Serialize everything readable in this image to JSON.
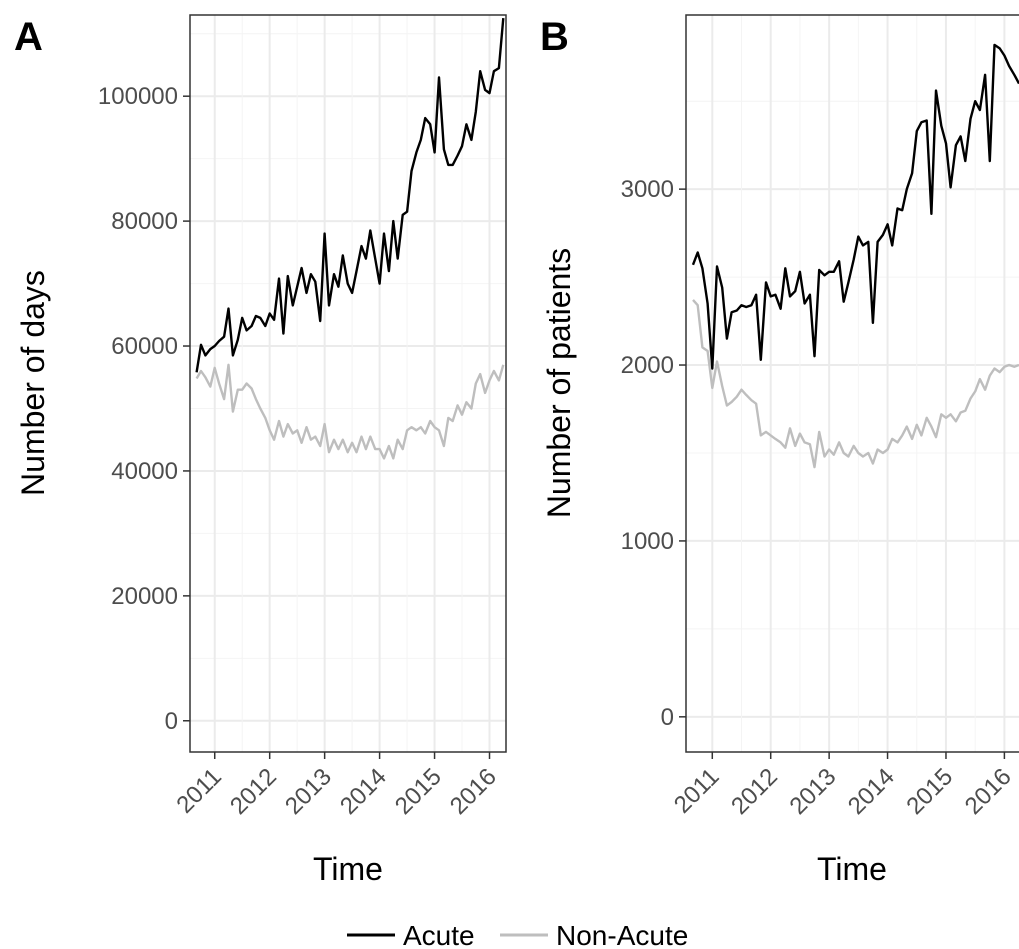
{
  "legend": {
    "placement": "bottom",
    "entries": [
      {
        "name": "Acute",
        "color": "#000000"
      },
      {
        "name": "Non-Acute",
        "color": "#bebebe"
      }
    ]
  },
  "chart_data": [
    {
      "panel": "A",
      "type": "line",
      "xlabel": "Time",
      "ylabel": "Number of days",
      "xlim": [
        2010.55,
        2016.3
      ],
      "ylim": [
        -5000,
        113000
      ],
      "x_ticks": [
        "2011",
        "2012",
        "2013",
        "2014",
        "2015",
        "2016"
      ],
      "y_ticks": [
        "0",
        "20000",
        "40000",
        "60000",
        "80000",
        "100000"
      ],
      "grid": true,
      "series": [
        {
          "name": "Acute",
          "color": "#000000",
          "x": [
            2010.67,
            2010.75,
            2010.83,
            2010.92,
            2011.0,
            2011.08,
            2011.17,
            2011.25,
            2011.33,
            2011.42,
            2011.5,
            2011.58,
            2011.67,
            2011.75,
            2011.83,
            2011.92,
            2012.0,
            2012.08,
            2012.17,
            2012.25,
            2012.33,
            2012.42,
            2012.5,
            2012.58,
            2012.67,
            2012.75,
            2012.83,
            2012.92,
            2013.0,
            2013.08,
            2013.17,
            2013.25,
            2013.33,
            2013.42,
            2013.5,
            2013.58,
            2013.67,
            2013.75,
            2013.83,
            2013.92,
            2014.0,
            2014.08,
            2014.17,
            2014.25,
            2014.33,
            2014.42,
            2014.5,
            2014.58,
            2014.67,
            2014.75,
            2014.83,
            2014.92,
            2015.0,
            2015.08,
            2015.17,
            2015.25,
            2015.33,
            2015.42,
            2015.5,
            2015.58,
            2015.67,
            2015.75,
            2015.83,
            2015.92,
            2016.0,
            2016.08,
            2016.17,
            2016.25
          ],
          "values": [
            55800,
            60200,
            58500,
            59500,
            60000,
            60800,
            61500,
            66000,
            58500,
            61000,
            64500,
            62500,
            63200,
            64800,
            64500,
            63200,
            65200,
            64200,
            70800,
            62000,
            71200,
            66500,
            69500,
            72500,
            68500,
            71500,
            70300,
            64000,
            78000,
            66500,
            71500,
            69500,
            74500,
            70000,
            68500,
            72000,
            76000,
            74000,
            78500,
            74000,
            70000,
            78000,
            72000,
            80000,
            74000,
            81000,
            81500,
            88000,
            91000,
            93000,
            96500,
            95500,
            91000,
            103000,
            91500,
            89000,
            89000,
            90500,
            92000,
            95500,
            93000,
            97500,
            104000,
            101000,
            100500,
            104000,
            104500,
            112500
          ]
        },
        {
          "name": "Non-Acute",
          "color": "#bebebe",
          "x": [
            2010.67,
            2010.75,
            2010.83,
            2010.92,
            2011.0,
            2011.08,
            2011.17,
            2011.25,
            2011.33,
            2011.42,
            2011.5,
            2011.58,
            2011.67,
            2011.75,
            2011.83,
            2011.92,
            2012.0,
            2012.08,
            2012.17,
            2012.25,
            2012.33,
            2012.42,
            2012.5,
            2012.58,
            2012.67,
            2012.75,
            2012.83,
            2012.92,
            2013.0,
            2013.08,
            2013.17,
            2013.25,
            2013.33,
            2013.42,
            2013.5,
            2013.58,
            2013.67,
            2013.75,
            2013.83,
            2013.92,
            2014.0,
            2014.08,
            2014.17,
            2014.25,
            2014.33,
            2014.42,
            2014.5,
            2014.58,
            2014.67,
            2014.75,
            2014.83,
            2014.92,
            2015.0,
            2015.08,
            2015.17,
            2015.25,
            2015.33,
            2015.42,
            2015.5,
            2015.58,
            2015.67,
            2015.75,
            2015.83,
            2015.92,
            2016.0,
            2016.08,
            2016.17,
            2016.25
          ],
          "values": [
            54800,
            56000,
            55000,
            53500,
            56500,
            54000,
            51500,
            57000,
            49500,
            53000,
            53000,
            54000,
            53200,
            51500,
            50000,
            48500,
            46500,
            45000,
            48000,
            45500,
            47500,
            46000,
            46500,
            44500,
            47000,
            45000,
            45500,
            44000,
            47500,
            43000,
            45000,
            43500,
            45000,
            43000,
            44500,
            43000,
            45500,
            43500,
            45500,
            43500,
            43500,
            42000,
            44000,
            42000,
            45000,
            43500,
            46500,
            47000,
            46500,
            47000,
            46000,
            48000,
            47000,
            46500,
            44000,
            48500,
            48000,
            50500,
            49000,
            51000,
            50000,
            54000,
            55500,
            52500,
            54500,
            56000,
            54500,
            57000
          ]
        }
      ]
    },
    {
      "panel": "B",
      "type": "line",
      "xlabel": "Time",
      "ylabel": "Number of patients",
      "xlim": [
        2010.55,
        2016.25
      ],
      "ylim": [
        -200,
        3990
      ],
      "x_ticks": [
        "2011",
        "2012",
        "2013",
        "2014",
        "2015",
        "2016"
      ],
      "y_ticks": [
        "0",
        "1000",
        "2000",
        "3000"
      ],
      "grid": true,
      "series": [
        {
          "name": "Acute",
          "color": "#000000",
          "x": [
            2010.67,
            2010.75,
            2010.83,
            2010.92,
            2011.0,
            2011.08,
            2011.17,
            2011.25,
            2011.33,
            2011.42,
            2011.5,
            2011.58,
            2011.67,
            2011.75,
            2011.83,
            2011.92,
            2012.0,
            2012.08,
            2012.17,
            2012.25,
            2012.33,
            2012.42,
            2012.5,
            2012.58,
            2012.67,
            2012.75,
            2012.83,
            2012.92,
            2013.0,
            2013.08,
            2013.17,
            2013.25,
            2013.33,
            2013.42,
            2013.5,
            2013.58,
            2013.67,
            2013.75,
            2013.83,
            2013.92,
            2014.0,
            2014.08,
            2014.17,
            2014.25,
            2014.33,
            2014.42,
            2014.5,
            2014.58,
            2014.67,
            2014.75,
            2014.83,
            2014.92,
            2015.0,
            2015.08,
            2015.17,
            2015.25,
            2015.33,
            2015.42,
            2015.5,
            2015.58,
            2015.67,
            2015.75,
            2015.83,
            2015.92,
            2016.0,
            2016.08,
            2016.17,
            2016.25
          ],
          "values": [
            2570,
            2640,
            2550,
            2350,
            1980,
            2560,
            2440,
            2150,
            2300,
            2310,
            2340,
            2330,
            2340,
            2400,
            2030,
            2470,
            2390,
            2400,
            2320,
            2550,
            2390,
            2420,
            2530,
            2350,
            2400,
            2050,
            2540,
            2510,
            2530,
            2530,
            2590,
            2360,
            2470,
            2600,
            2730,
            2680,
            2700,
            2240,
            2700,
            2740,
            2800,
            2680,
            2890,
            2880,
            3000,
            3090,
            3330,
            3380,
            3390,
            2860,
            3560,
            3360,
            3260,
            3010,
            3250,
            3300,
            3160,
            3400,
            3500,
            3450,
            3650,
            3160,
            3820,
            3800,
            3760,
            3700,
            3650,
            3600
          ]
        },
        {
          "name": "Non-Acute",
          "color": "#bebebe",
          "x": [
            2010.67,
            2010.75,
            2010.83,
            2010.92,
            2011.0,
            2011.08,
            2011.17,
            2011.25,
            2011.33,
            2011.42,
            2011.5,
            2011.58,
            2011.67,
            2011.75,
            2011.83,
            2011.92,
            2012.0,
            2012.08,
            2012.17,
            2012.25,
            2012.33,
            2012.42,
            2012.5,
            2012.58,
            2012.67,
            2012.75,
            2012.83,
            2012.92,
            2013.0,
            2013.08,
            2013.17,
            2013.25,
            2013.33,
            2013.42,
            2013.5,
            2013.58,
            2013.67,
            2013.75,
            2013.83,
            2013.92,
            2014.0,
            2014.08,
            2014.17,
            2014.25,
            2014.33,
            2014.42,
            2014.5,
            2014.58,
            2014.67,
            2014.75,
            2014.83,
            2014.92,
            2015.0,
            2015.08,
            2015.17,
            2015.25,
            2015.33,
            2015.42,
            2015.5,
            2015.58,
            2015.67,
            2015.75,
            2015.83,
            2015.92,
            2016.0,
            2016.08,
            2016.17,
            2016.25
          ],
          "values": [
            2370,
            2340,
            2100,
            2080,
            1870,
            2020,
            1880,
            1770,
            1790,
            1820,
            1860,
            1830,
            1800,
            1780,
            1600,
            1620,
            1600,
            1580,
            1560,
            1530,
            1640,
            1540,
            1610,
            1560,
            1550,
            1420,
            1620,
            1480,
            1520,
            1490,
            1560,
            1500,
            1480,
            1540,
            1500,
            1480,
            1500,
            1440,
            1520,
            1500,
            1520,
            1580,
            1560,
            1600,
            1650,
            1580,
            1660,
            1600,
            1700,
            1650,
            1590,
            1720,
            1700,
            1720,
            1680,
            1730,
            1740,
            1810,
            1850,
            1920,
            1860,
            1940,
            1980,
            1960,
            1990,
            2000,
            1990,
            2000
          ]
        }
      ]
    }
  ],
  "panels": [
    {
      "tag": "A"
    },
    {
      "tag": "B"
    }
  ]
}
